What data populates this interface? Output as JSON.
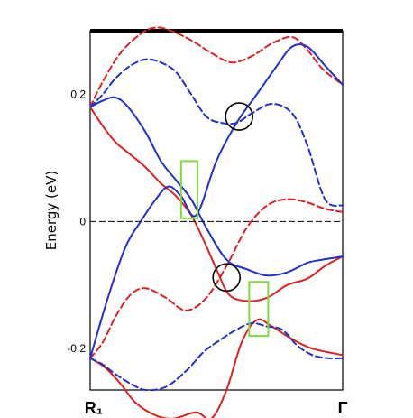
{
  "chart_data": {
    "type": "line",
    "title": "",
    "xlabel": "",
    "ylabel": "Energy  (eV)",
    "ylim": [
      -0.265,
      0.3
    ],
    "xlim": [
      0,
      1
    ],
    "y_ticks": [
      {
        "value": 0.2,
        "label": "0.2"
      },
      {
        "value": 0.0,
        "label": "0"
      },
      {
        "value": -0.2,
        "label": "-0.2"
      }
    ],
    "x_ticks": [
      {
        "value": 0,
        "label": "R₁"
      },
      {
        "value": 1,
        "label": "Γ"
      }
    ],
    "fermi_level": 0,
    "colors": {
      "red": "#e0201e",
      "blue": "#1f2fd0",
      "highlight_circle": "#000000",
      "highlight_box": "#80d840"
    },
    "series": [
      {
        "color": "red",
        "style": "solid",
        "x": [
          0,
          0.05,
          0.1,
          0.16,
          0.22,
          0.28,
          0.34,
          0.4,
          0.45,
          0.5,
          0.55,
          0.62,
          0.7,
          0.78,
          0.86,
          0.93,
          1
        ],
        "y": [
          0.18,
          0.15,
          0.125,
          0.105,
          0.085,
          0.06,
          0.04,
          0.01,
          -0.03,
          -0.075,
          -0.115,
          -0.125,
          -0.12,
          -0.1,
          -0.09,
          -0.07,
          -0.055
        ]
      },
      {
        "color": "red",
        "style": "dashed",
        "x": [
          0,
          0.05,
          0.12,
          0.2,
          0.26,
          0.32,
          0.4,
          0.48,
          0.56,
          0.64,
          0.72,
          0.8,
          0.86,
          0.92,
          1
        ],
        "y": [
          0.18,
          0.22,
          0.265,
          0.295,
          0.305,
          0.3,
          0.285,
          0.265,
          0.25,
          0.26,
          0.28,
          0.29,
          0.27,
          0.24,
          0.215
        ]
      },
      {
        "color": "red",
        "style": "dashed",
        "x": [
          0,
          0.05,
          0.1,
          0.16,
          0.22,
          0.3,
          0.38,
          0.46,
          0.54,
          0.62,
          0.7,
          0.78,
          0.86,
          0.93,
          1
        ],
        "y": [
          -0.215,
          -0.19,
          -0.15,
          -0.115,
          -0.105,
          -0.12,
          -0.14,
          -0.12,
          -0.07,
          -0.01,
          0.025,
          0.035,
          0.03,
          0.02,
          0.015
        ]
      },
      {
        "color": "red",
        "style": "solid",
        "x": [
          0,
          0.06,
          0.12,
          0.18,
          0.26,
          0.33,
          0.42,
          0.48,
          0.54,
          0.6,
          0.66,
          0.72,
          0.8,
          0.88,
          1
        ],
        "y": [
          -0.215,
          -0.23,
          -0.255,
          -0.285,
          -0.305,
          -0.31,
          -0.3,
          -0.31,
          -0.265,
          -0.19,
          -0.155,
          -0.165,
          -0.185,
          -0.2,
          -0.21
        ]
      },
      {
        "color": "blue",
        "style": "solid",
        "x": [
          0,
          0.05,
          0.1,
          0.15,
          0.22,
          0.28,
          0.34,
          0.4,
          0.46,
          0.54,
          0.62,
          0.7,
          0.78,
          0.86,
          0.92,
          1
        ],
        "y": [
          0.18,
          0.19,
          0.195,
          0.18,
          0.14,
          0.095,
          0.065,
          0.035,
          -0.01,
          -0.06,
          -0.075,
          -0.085,
          -0.08,
          -0.065,
          -0.06,
          -0.055
        ]
      },
      {
        "color": "blue",
        "style": "solid",
        "x": [
          0,
          0.07,
          0.14,
          0.2,
          0.26,
          0.31,
          0.36,
          0.42,
          0.5,
          0.58,
          0.66,
          0.74,
          0.8,
          0.86,
          0.93,
          1
        ],
        "y": [
          -0.215,
          -0.12,
          -0.04,
          0.0,
          0.035,
          0.055,
          0.04,
          0.01,
          0.095,
          0.155,
          0.2,
          0.245,
          0.275,
          0.275,
          0.245,
          0.215
        ]
      },
      {
        "color": "blue",
        "style": "dashed",
        "x": [
          0,
          0.05,
          0.1,
          0.16,
          0.22,
          0.28,
          0.34,
          0.4,
          0.46,
          0.52,
          0.58,
          0.64,
          0.72,
          0.8,
          0.86,
          0.93,
          1
        ],
        "y": [
          0.18,
          0.2,
          0.225,
          0.245,
          0.255,
          0.25,
          0.235,
          0.2,
          0.165,
          0.155,
          0.155,
          0.17,
          0.185,
          0.17,
          0.12,
          0.035,
          0.025
        ]
      },
      {
        "color": "blue",
        "style": "dashed",
        "x": [
          0,
          0.05,
          0.1,
          0.16,
          0.22,
          0.3,
          0.38,
          0.45,
          0.52,
          0.58,
          0.64,
          0.7,
          0.76,
          0.82,
          0.88,
          0.94,
          1
        ],
        "y": [
          -0.215,
          -0.225,
          -0.24,
          -0.255,
          -0.265,
          -0.26,
          -0.235,
          -0.205,
          -0.185,
          -0.17,
          -0.16,
          -0.165,
          -0.17,
          -0.195,
          -0.21,
          -0.215,
          -0.215
        ]
      }
    ],
    "annotations": [
      {
        "shape": "circle",
        "color": "highlight_circle",
        "x": 0.59,
        "y": 0.165
      },
      {
        "shape": "circle",
        "color": "highlight_circle",
        "x": 0.54,
        "y": -0.088
      },
      {
        "shape": "rectangle",
        "color": "highlight_box",
        "x_range": [
          0.36,
          0.425
        ],
        "y_range": [
          0.005,
          0.095
        ]
      },
      {
        "shape": "rectangle",
        "color": "highlight_box",
        "x_range": [
          0.63,
          0.705
        ],
        "y_range": [
          -0.18,
          -0.095
        ]
      }
    ],
    "grid": false,
    "legend": "none"
  }
}
